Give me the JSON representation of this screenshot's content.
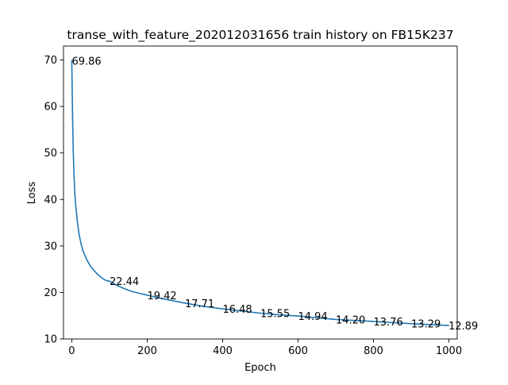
{
  "chart_data": {
    "type": "line",
    "title": "transe_with_feature_202012031656 train history on FB15K237",
    "xlabel": "Epoch",
    "ylabel": "Loss",
    "xlim": [
      -22,
      1022
    ],
    "ylim": [
      10,
      73
    ],
    "xticks": [
      0,
      200,
      400,
      600,
      800,
      1000
    ],
    "yticks": [
      10,
      20,
      30,
      40,
      50,
      60,
      70
    ],
    "grid": false,
    "line_color": "#1f77b4",
    "series": [
      {
        "x": [
          0,
          2,
          4,
          6,
          8,
          10,
          15,
          20,
          25,
          30,
          40,
          50,
          60,
          70,
          80,
          90,
          100,
          120,
          140,
          160,
          180,
          200,
          250,
          300,
          350,
          400,
          450,
          500,
          550,
          600,
          650,
          700,
          750,
          800,
          850,
          900,
          950,
          999
        ],
        "y": [
          69.86,
          58.0,
          50.0,
          45.0,
          41.5,
          39.0,
          35.0,
          32.2,
          30.3,
          28.9,
          27.0,
          25.6,
          24.6,
          23.8,
          23.1,
          22.6,
          22.44,
          21.5,
          20.8,
          20.2,
          19.8,
          19.42,
          18.5,
          17.71,
          17.0,
          16.48,
          16.0,
          15.55,
          15.2,
          14.94,
          14.55,
          14.2,
          13.98,
          13.76,
          13.52,
          13.29,
          13.08,
          12.89
        ]
      }
    ],
    "annotations": [
      {
        "x": 0,
        "y": 69.86,
        "text": "69.86"
      },
      {
        "x": 100,
        "y": 22.44,
        "text": "22.44"
      },
      {
        "x": 200,
        "y": 19.42,
        "text": "19.42"
      },
      {
        "x": 300,
        "y": 17.71,
        "text": "17.71"
      },
      {
        "x": 400,
        "y": 16.48,
        "text": "16.48"
      },
      {
        "x": 500,
        "y": 15.55,
        "text": "15.55"
      },
      {
        "x": 600,
        "y": 14.94,
        "text": "14.94"
      },
      {
        "x": 700,
        "y": 14.2,
        "text": "14.20"
      },
      {
        "x": 800,
        "y": 13.76,
        "text": "13.76"
      },
      {
        "x": 900,
        "y": 13.29,
        "text": "13.29"
      },
      {
        "x": 999,
        "y": 12.89,
        "text": "12.89"
      }
    ]
  }
}
